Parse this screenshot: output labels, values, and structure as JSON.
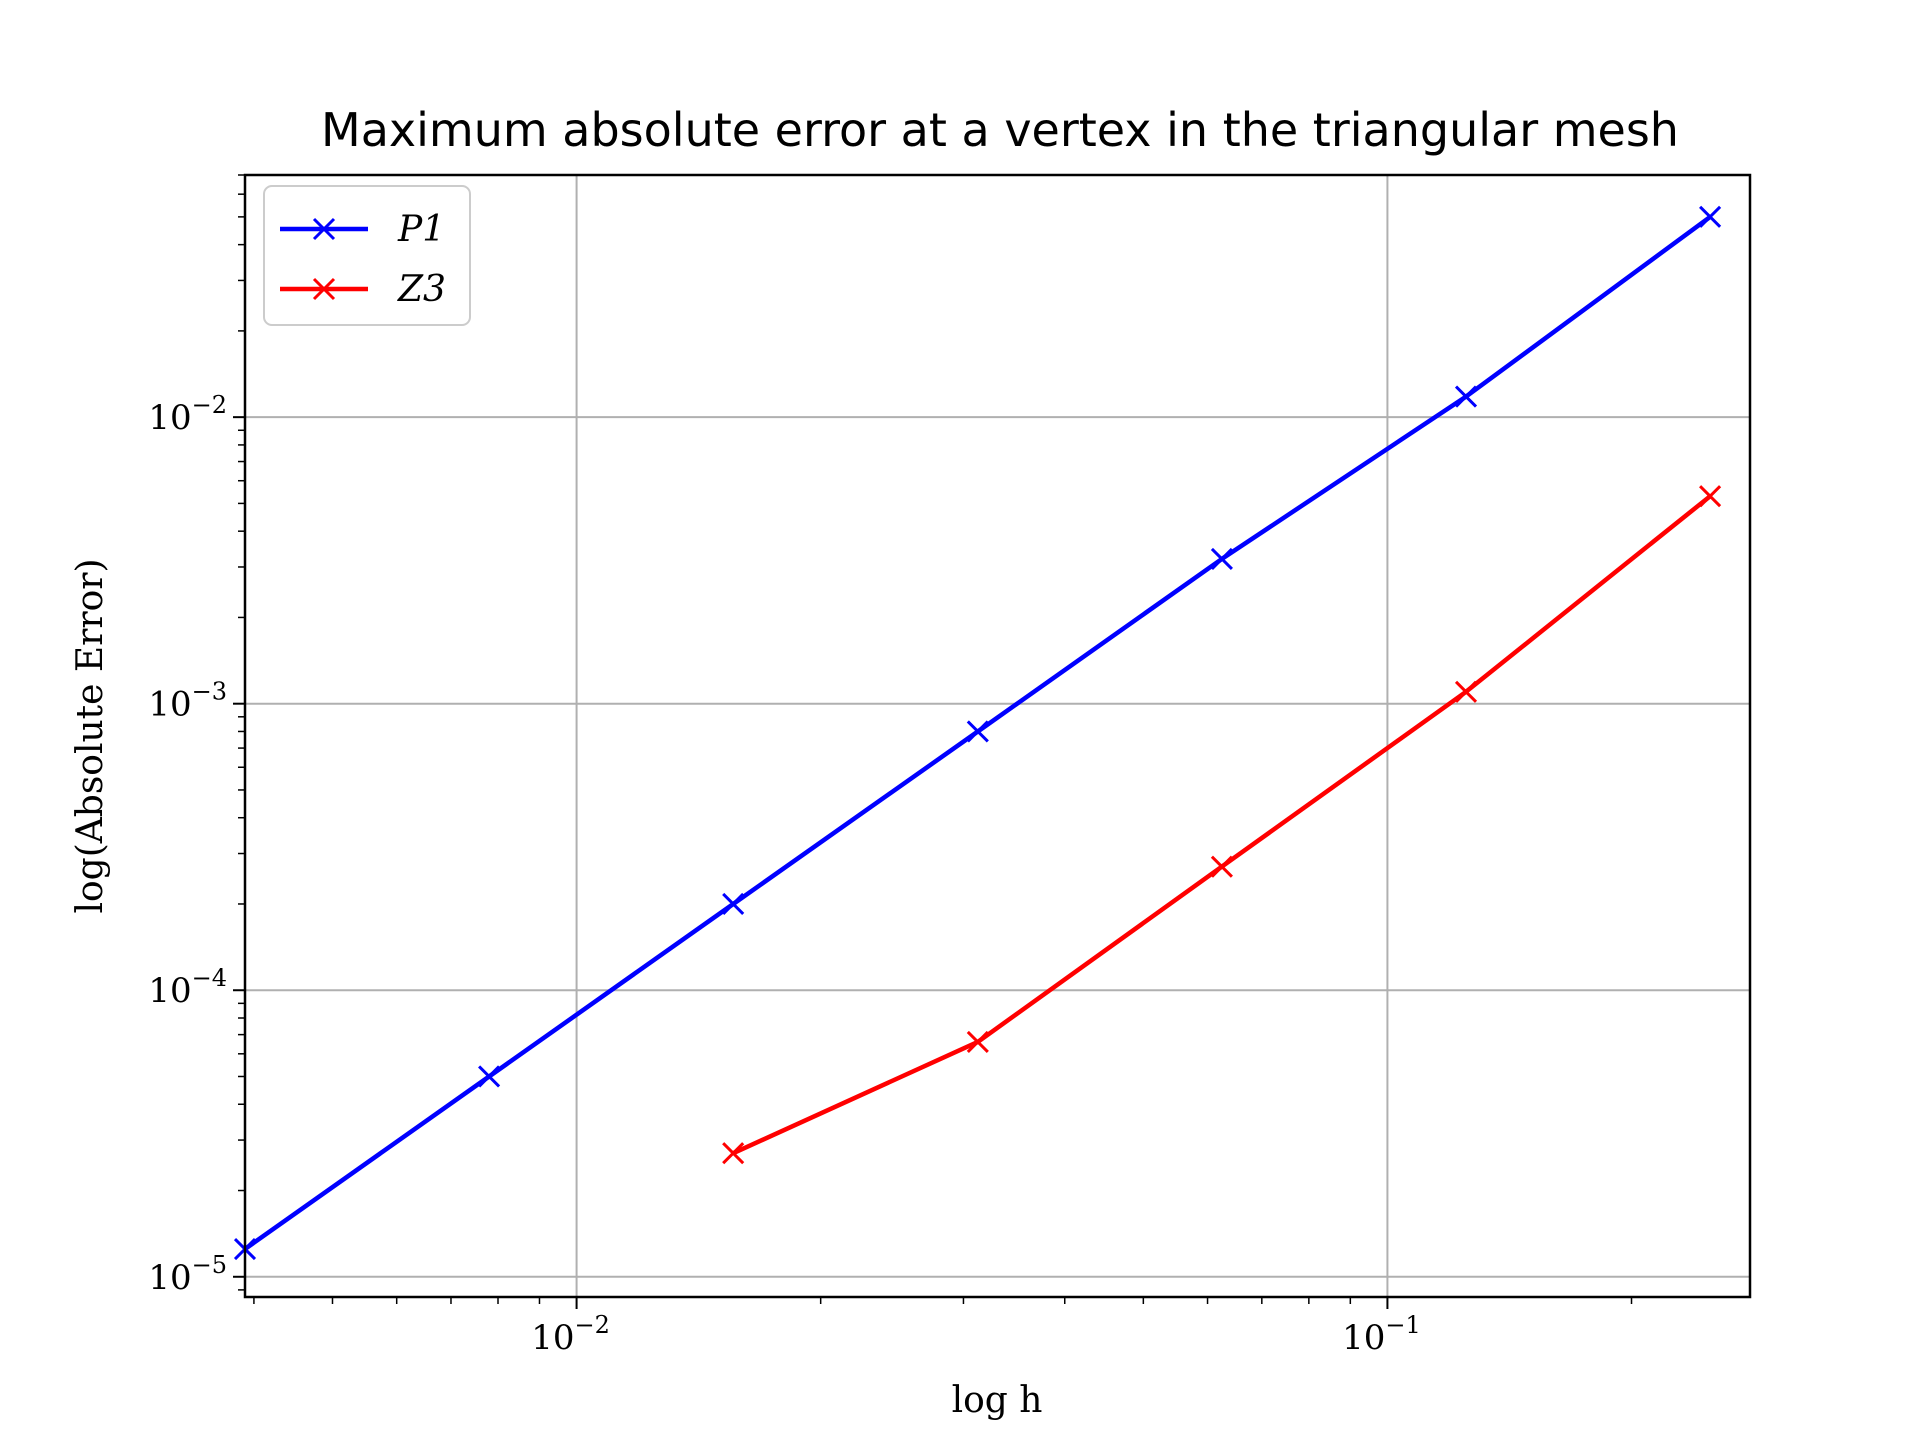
{
  "chart_data": {
    "type": "line",
    "title": "Maximum absolute error at a vertex in the triangular mesh",
    "xlabel": "log h",
    "ylabel": "log(Absolute Error)",
    "xscale": "log",
    "yscale": "log",
    "xlim": [
      0.0039,
      0.28
    ],
    "ylim": [
      8.5e-06,
      0.07
    ],
    "x_ticks": [
      {
        "base": "10",
        "exp": "−2",
        "value": 0.01
      },
      {
        "base": "10",
        "exp": "−1",
        "value": 0.1
      }
    ],
    "y_ticks": [
      {
        "base": "10",
        "exp": "−5",
        "value": 1e-05
      },
      {
        "base": "10",
        "exp": "−4",
        "value": 0.0001
      },
      {
        "base": "10",
        "exp": "−3",
        "value": 0.001
      },
      {
        "base": "10",
        "exp": "−2",
        "value": 0.01
      }
    ],
    "grid": true,
    "legend_position": "top-left",
    "series": [
      {
        "name": "P1",
        "color": "#0000ff",
        "marker": "x",
        "x": [
          0.0039,
          0.0078,
          0.0156,
          0.03125,
          0.0625,
          0.125,
          0.25
        ],
        "y": [
          1.25e-05,
          5e-05,
          0.0002,
          0.0008,
          0.0032,
          0.0118,
          0.05
        ]
      },
      {
        "name": "Z3",
        "color": "#ff0000",
        "marker": "x",
        "x": [
          0.0156,
          0.03125,
          0.0625,
          0.125,
          0.25
        ],
        "y": [
          2.7e-05,
          6.6e-05,
          0.00027,
          0.0011,
          0.0053
        ]
      }
    ]
  }
}
